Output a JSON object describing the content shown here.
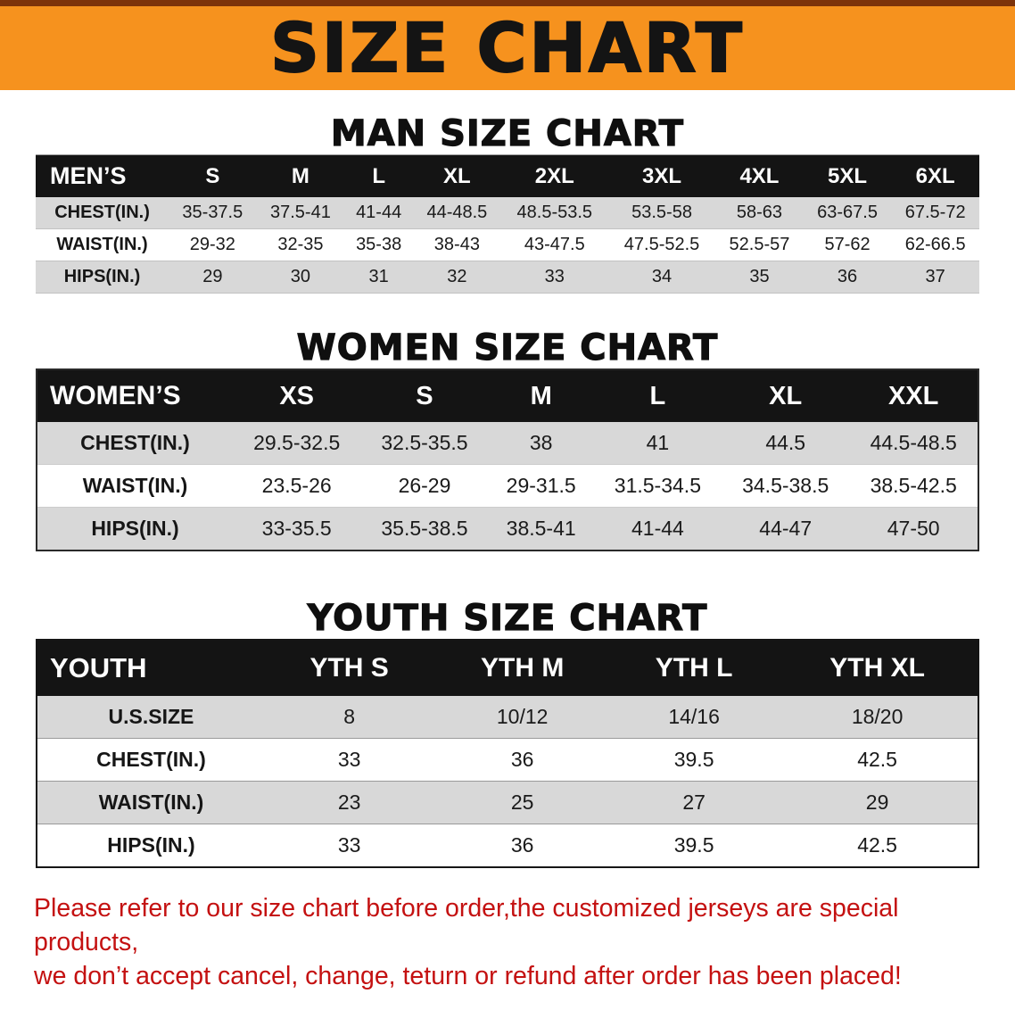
{
  "banner": {
    "title": "SIZE CHART"
  },
  "sections": [
    {
      "heading": "MAN SIZE CHART",
      "table": {
        "header": [
          "MEN’S",
          "S",
          "M",
          "L",
          "XL",
          "2XL",
          "3XL",
          "4XL",
          "5XL",
          "6XL"
        ],
        "rows": [
          [
            "CHEST(IN.)",
            "35-37.5",
            "37.5-41",
            "41-44",
            "44-48.5",
            "48.5-53.5",
            "53.5-58",
            "58-63",
            "63-67.5",
            "67.5-72"
          ],
          [
            "WAIST(IN.)",
            "29-32",
            "32-35",
            "35-38",
            "38-43",
            "43-47.5",
            "47.5-52.5",
            "52.5-57",
            "57-62",
            "62-66.5"
          ],
          [
            "HIPS(IN.)",
            "29",
            "30",
            "31",
            "32",
            "33",
            "34",
            "35",
            "36",
            "37"
          ]
        ]
      }
    },
    {
      "heading": "WOMEN SIZE CHART",
      "table": {
        "header": [
          "WOMEN’S",
          "XS",
          "S",
          "M",
          "L",
          "XL",
          "XXL"
        ],
        "rows": [
          [
            "CHEST(IN.)",
            "29.5-32.5",
            "32.5-35.5",
            "38",
            "41",
            "44.5",
            "44.5-48.5"
          ],
          [
            "WAIST(IN.)",
            "23.5-26",
            "26-29",
            "29-31.5",
            "31.5-34.5",
            "34.5-38.5",
            "38.5-42.5"
          ],
          [
            "HIPS(IN.)",
            "33-35.5",
            "35.5-38.5",
            "38.5-41",
            "41-44",
            "44-47",
            "47-50"
          ]
        ]
      }
    },
    {
      "heading": "YOUTH SIZE CHART",
      "table": {
        "header": [
          "YOUTH",
          "YTH S",
          "YTH M",
          "YTH L",
          "YTH XL"
        ],
        "rows": [
          [
            "U.S.SIZE",
            "8",
            "10/12",
            "14/16",
            "18/20"
          ],
          [
            "CHEST(IN.)",
            "33",
            "36",
            "39.5",
            "42.5"
          ],
          [
            "WAIST(IN.)",
            "23",
            "25",
            "27",
            "29"
          ],
          [
            "HIPS(IN.)",
            "33",
            "36",
            "39.5",
            "42.5"
          ]
        ]
      }
    }
  ],
  "disclaimer": {
    "lines": [
      "Please refer to our size chart before order,the customized jerseys are special products,",
      "we don’t accept cancel, change, teturn or refund after order has been placed!"
    ]
  },
  "colors": {
    "banner_bg": "#F6921E",
    "table_header_bg": "#141414",
    "row_stripe": "#D8D8D8",
    "disclaimer_text": "#C41111"
  }
}
